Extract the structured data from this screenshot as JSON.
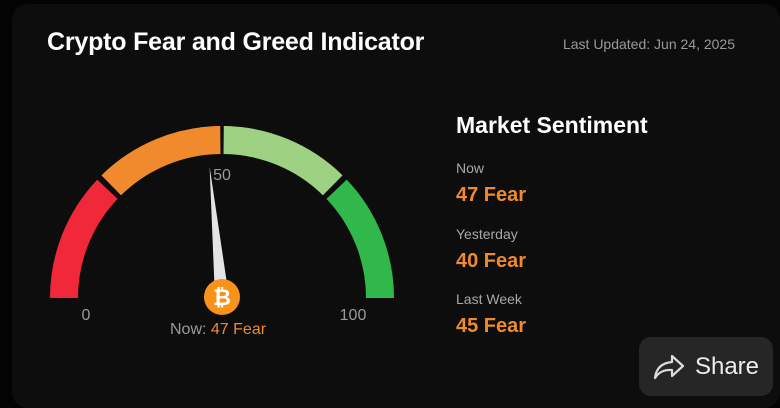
{
  "header": {
    "title": "Crypto Fear and Greed Indicator",
    "last_updated": "Last Updated: Jun 24, 2025"
  },
  "gauge": {
    "min_label": "0",
    "mid_label": "50",
    "max_label": "100",
    "value": 47,
    "segment_colors": [
      "#f0283a",
      "#f08a2c",
      "#9ed181",
      "#31b84b"
    ],
    "needle_color": "#e4e4e4",
    "badge_icon": "bitcoin-icon",
    "badge_color": "#f7931a",
    "now_prefix": "Now:",
    "now_value": "47 Fear"
  },
  "sentiment": {
    "title": "Market Sentiment",
    "rows": [
      {
        "label": "Now",
        "value": "47 Fear"
      },
      {
        "label": "Yesterday",
        "value": "40 Fear"
      },
      {
        "label": "Last Week",
        "value": "45 Fear"
      }
    ]
  },
  "share": {
    "label": "Share",
    "icon": "share-icon"
  }
}
